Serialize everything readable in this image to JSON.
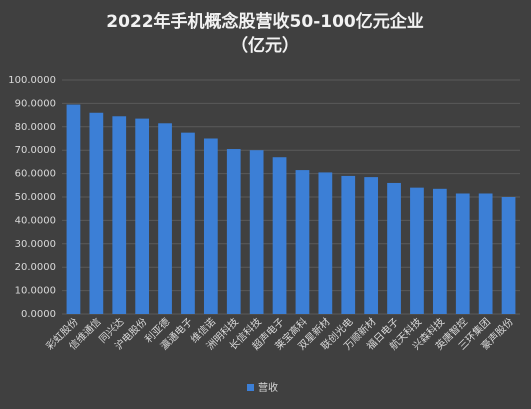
{
  "chart_data": {
    "type": "bar",
    "title": "2022年手机概念股营收50-100亿元企业",
    "subtitle": "（亿元）",
    "categories": [
      "彩虹股份",
      "信维通信",
      "同兴达",
      "沪电股份",
      "利亚德",
      "瀛通电子",
      "维信诺",
      "洲明科技",
      "长信科技",
      "超声电子",
      "莱宝高科",
      "双星新材",
      "联创光电",
      "万顺新材",
      "福日电子",
      "航天科技",
      "兴森科技",
      "英唐智控",
      "三环集团",
      "豪声股份"
    ],
    "series": [
      {
        "name": "营收",
        "color": "#3c7fd6",
        "values": [
          89.5,
          86,
          84.5,
          83.5,
          81.5,
          77.5,
          75,
          70.5,
          70,
          67,
          61.5,
          60.5,
          59,
          58.5,
          56,
          54,
          53.5,
          51.5,
          51.5,
          50
        ]
      }
    ],
    "ylim": [
      0,
      100
    ],
    "yticks": [
      {
        "value": 0,
        "label": "0.0000"
      },
      {
        "value": 10,
        "label": "10.0000"
      },
      {
        "value": 20,
        "label": "20.0000"
      },
      {
        "value": 30,
        "label": "30.0000"
      },
      {
        "value": 40,
        "label": "40.0000"
      },
      {
        "value": 50,
        "label": "50.0000"
      },
      {
        "value": 60,
        "label": "60.0000"
      },
      {
        "value": 70,
        "label": "70.0000"
      },
      {
        "value": 80,
        "label": "80.0000"
      },
      {
        "value": 90,
        "label": "90.0000"
      },
      {
        "value": 100,
        "label": "100.0000"
      }
    ],
    "grid": true
  }
}
